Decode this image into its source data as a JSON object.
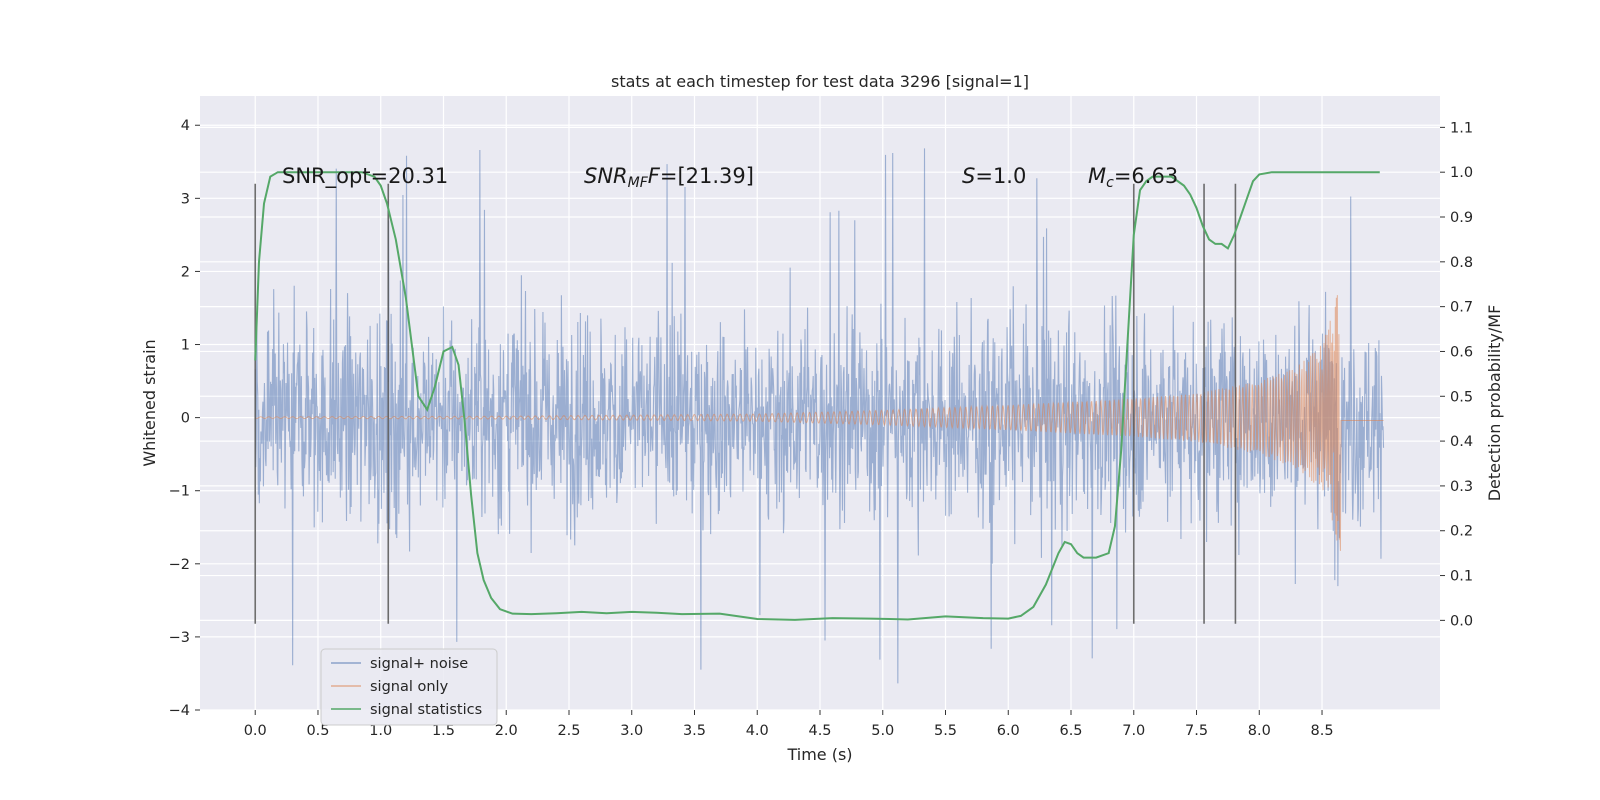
{
  "chart_data": {
    "type": "line",
    "title": "stats at each timestep for test data 3296 [signal=1]",
    "xlabel": "Time (s)",
    "ylabel_left": "Whitened strain",
    "ylabel_right": "Detection probability/MF",
    "xlim": [
      -0.44,
      9.44
    ],
    "ylim_left": [
      -4.0,
      4.4
    ],
    "ylim_right": [
      -0.2,
      1.17
    ],
    "x_ticks": [
      "0.0",
      "0.5",
      "1.0",
      "1.5",
      "2.0",
      "2.5",
      "3.0",
      "3.5",
      "4.0",
      "4.5",
      "5.0",
      "5.5",
      "6.0",
      "6.5",
      "7.0",
      "7.5",
      "8.0",
      "8.5"
    ],
    "y_ticks_left": [
      "4",
      "3",
      "2",
      "1",
      "0",
      "−1",
      "−2",
      "−3",
      "−4"
    ],
    "y_ticks_right": [
      "1.1",
      "1.0",
      "0.9",
      "0.8",
      "0.7",
      "0.6",
      "0.5",
      "0.4",
      "0.3",
      "0.2",
      "0.1",
      "0.0"
    ],
    "grid": true,
    "legend_position": "lower-left",
    "legend": [
      "signal+ noise",
      "signal only",
      "signal statistics"
    ],
    "colors": {
      "signal_noise": "#4c72b0",
      "signal_only": "#dd8452",
      "signal_statistics": "#55a868",
      "vlines": "#555555",
      "plot_bg": "#eaeaf2",
      "grid": "#ffffff"
    },
    "annotations": {
      "snr_opt": "SNR_opt=20.31",
      "snr_mf_prefix": "SNR",
      "snr_mf_sub": "MF",
      "snr_mf_value": "=[21.39]",
      "s_symbol": "S",
      "s_value": "=1.0",
      "mc_symbol": "M",
      "mc_sub": "c",
      "mc_value": "=6.63"
    },
    "series": [
      {
        "name": "signal+ noise",
        "type": "noise",
        "x_range": [
          0.0,
          8.99
        ],
        "envelope": 1.4,
        "min": -3.65,
        "max": 4.02
      },
      {
        "name": "signal only",
        "type": "chirp",
        "x_range": [
          0.0,
          8.99
        ],
        "merger_time": 8.65,
        "amplitudes": [
          [
            0.0,
            0.01
          ],
          [
            2.0,
            0.02
          ],
          [
            4.0,
            0.05
          ],
          [
            5.0,
            0.1
          ],
          [
            6.0,
            0.17
          ],
          [
            7.0,
            0.26
          ],
          [
            7.5,
            0.33
          ],
          [
            8.0,
            0.5
          ],
          [
            8.3,
            0.7
          ],
          [
            8.5,
            1.0
          ],
          [
            8.6,
            1.5
          ],
          [
            8.65,
            2.0
          ]
        ]
      },
      {
        "name": "signal statistics",
        "type": "line",
        "x": [
          0.0,
          0.03,
          0.07,
          0.12,
          0.18,
          0.25,
          0.35,
          0.5,
          0.7,
          0.85,
          0.95,
          1.0,
          1.05,
          1.12,
          1.2,
          1.3,
          1.37,
          1.43,
          1.5,
          1.57,
          1.62,
          1.67,
          1.72,
          1.77,
          1.82,
          1.88,
          1.95,
          2.05,
          2.2,
          2.4,
          2.6,
          2.8,
          3.0,
          3.2,
          3.4,
          3.7,
          4.0,
          4.3,
          4.6,
          4.9,
          5.2,
          5.5,
          5.8,
          6.0,
          6.1,
          6.2,
          6.3,
          6.4,
          6.45,
          6.5,
          6.55,
          6.6,
          6.7,
          6.8,
          6.85,
          6.9,
          6.95,
          7.0,
          7.05,
          7.1,
          7.15,
          7.2,
          7.3,
          7.4,
          7.45,
          7.5,
          7.55,
          7.6,
          7.65,
          7.7,
          7.75,
          7.8,
          7.85,
          7.9,
          7.95,
          8.0,
          8.1,
          8.3,
          8.6,
          8.96
        ],
        "values": [
          0.58,
          0.8,
          0.93,
          0.99,
          1.0,
          1.0,
          1.0,
          1.0,
          1.0,
          1.0,
          0.99,
          0.97,
          0.93,
          0.85,
          0.72,
          0.5,
          0.47,
          0.52,
          0.6,
          0.61,
          0.57,
          0.44,
          0.28,
          0.15,
          0.09,
          0.05,
          0.025,
          0.015,
          0.014,
          0.016,
          0.019,
          0.016,
          0.019,
          0.017,
          0.014,
          0.015,
          0.003,
          0.001,
          0.005,
          0.004,
          0.002,
          0.009,
          0.005,
          0.004,
          0.01,
          0.03,
          0.08,
          0.15,
          0.175,
          0.17,
          0.15,
          0.14,
          0.14,
          0.15,
          0.21,
          0.38,
          0.62,
          0.86,
          0.96,
          0.98,
          0.99,
          0.99,
          0.99,
          0.97,
          0.95,
          0.92,
          0.88,
          0.85,
          0.84,
          0.84,
          0.83,
          0.86,
          0.9,
          0.94,
          0.98,
          0.995,
          1.0,
          1.0,
          1.0,
          1.0
        ]
      }
    ],
    "vlines": [
      {
        "x": 0.0,
        "y": [
          -2.82,
          3.2
        ]
      },
      {
        "x": 1.06,
        "y": [
          -2.82,
          3.2
        ]
      },
      {
        "x": 7.0,
        "y": [
          -2.82,
          3.2
        ]
      },
      {
        "x": 7.56,
        "y": [
          -2.82,
          3.2
        ]
      },
      {
        "x": 7.81,
        "y": [
          -2.82,
          3.2
        ]
      }
    ]
  }
}
